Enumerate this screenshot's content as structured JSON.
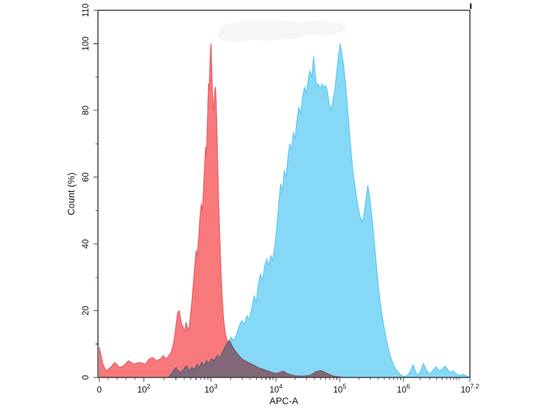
{
  "chart_data": {
    "type": "area",
    "variant": "flow-cytometry-overlay-histogram",
    "title": "",
    "xlabel": "APC-A",
    "ylabel": "Count (%)",
    "x_scale": "logicle",
    "ylim": [
      0,
      110
    ],
    "x_range_label": "0 to 10^7.2",
    "legend": "none",
    "grid": false,
    "axis_color": "#444444",
    "text_color": "#111111",
    "y_major_ticks": [
      0,
      20,
      40,
      60,
      80,
      100,
      110
    ],
    "y_minor_ticks": [
      10,
      30,
      50,
      70,
      90
    ],
    "x_ticks": [
      {
        "value": 0,
        "label": "0"
      },
      {
        "value": 100,
        "base": "10",
        "exp": "2"
      },
      {
        "value": 1000,
        "base": "10",
        "exp": "3"
      },
      {
        "value": 10000,
        "base": "10",
        "exp": "4"
      },
      {
        "value": 100000,
        "base": "10",
        "exp": "5"
      },
      {
        "value": 1000000,
        "base": "10",
        "exp": "6"
      },
      {
        "value": 15848932,
        "base": "10",
        "exp": "7.2"
      }
    ],
    "x_minor_ticks": [
      20,
      40,
      60,
      80,
      200,
      300,
      400,
      500,
      600,
      700,
      800,
      900,
      2000,
      3000,
      4000,
      5000,
      6000,
      7000,
      8000,
      9000,
      20000,
      30000,
      40000,
      50000,
      60000,
      70000,
      80000,
      90000,
      200000,
      300000,
      400000,
      500000,
      600000,
      700000,
      800000,
      900000,
      2000000,
      3000000,
      4000000,
      5000000,
      6000000,
      7000000,
      8000000,
      9000000,
      10000000
    ],
    "series": [
      {
        "name": "blue-stained-sample",
        "fill": "#85d9f7",
        "stroke": "#5cc6ee",
        "blend": "normal",
        "points": [
          [
            230,
            0
          ],
          [
            265,
            1.5
          ],
          [
            300,
            3
          ],
          [
            340,
            1.5
          ],
          [
            385,
            2.2
          ],
          [
            430,
            3.5
          ],
          [
            470,
            2
          ],
          [
            520,
            3
          ],
          [
            570,
            2.4
          ],
          [
            620,
            4
          ],
          [
            670,
            3
          ],
          [
            730,
            4.6
          ],
          [
            790,
            3.6
          ],
          [
            860,
            5
          ],
          [
            940,
            4.2
          ],
          [
            1020,
            5.6
          ],
          [
            1120,
            5
          ],
          [
            1240,
            6.6
          ],
          [
            1380,
            6
          ],
          [
            1540,
            8
          ],
          [
            1700,
            9.6
          ],
          [
            1880,
            11
          ],
          [
            2060,
            12
          ],
          [
            2260,
            11
          ],
          [
            2480,
            13
          ],
          [
            2720,
            15.5
          ],
          [
            2980,
            17
          ],
          [
            3260,
            16
          ],
          [
            3560,
            18.5
          ],
          [
            3900,
            17.5
          ],
          [
            4260,
            21
          ],
          [
            4600,
            24.5
          ],
          [
            4950,
            22.5
          ],
          [
            5350,
            28
          ],
          [
            5750,
            31
          ],
          [
            6200,
            29
          ],
          [
            6700,
            33.5
          ],
          [
            7200,
            35.5
          ],
          [
            7700,
            33.5
          ],
          [
            8300,
            36.5
          ],
          [
            8900,
            35
          ],
          [
            9500,
            39
          ],
          [
            10200,
            44
          ],
          [
            11000,
            52
          ],
          [
            11800,
            58
          ],
          [
            12600,
            56
          ],
          [
            13500,
            62
          ],
          [
            14400,
            60
          ],
          [
            15400,
            66
          ],
          [
            16400,
            70
          ],
          [
            17500,
            68
          ],
          [
            18700,
            73.5
          ],
          [
            19900,
            71.5
          ],
          [
            21300,
            77
          ],
          [
            22800,
            81
          ],
          [
            24400,
            79
          ],
          [
            26100,
            84
          ],
          [
            27900,
            87
          ],
          [
            29800,
            85
          ],
          [
            31800,
            89
          ],
          [
            34000,
            92
          ],
          [
            36300,
            90
          ],
          [
            38800,
            96
          ],
          [
            41000,
            91
          ],
          [
            43500,
            87
          ],
          [
            46000,
            88
          ],
          [
            49000,
            86.5
          ],
          [
            52500,
            88
          ],
          [
            56000,
            87
          ],
          [
            60000,
            87.5
          ],
          [
            64000,
            85.5
          ],
          [
            68500,
            82
          ],
          [
            73000,
            80
          ],
          [
            78000,
            83
          ],
          [
            83500,
            86
          ],
          [
            89000,
            91
          ],
          [
            95000,
            96
          ],
          [
            101500,
            100
          ],
          [
            108000,
            97
          ],
          [
            115000,
            93.5
          ],
          [
            123000,
            88
          ],
          [
            131000,
            82
          ],
          [
            140000,
            75
          ],
          [
            150000,
            68
          ],
          [
            160000,
            62
          ],
          [
            171000,
            58
          ],
          [
            183000,
            54
          ],
          [
            196000,
            50.5
          ],
          [
            210000,
            48
          ],
          [
            225000,
            46.5
          ],
          [
            240000,
            49
          ],
          [
            257000,
            53
          ],
          [
            275000,
            57.5
          ],
          [
            290000,
            55
          ],
          [
            308000,
            51
          ],
          [
            328000,
            46
          ],
          [
            350000,
            40
          ],
          [
            374000,
            34
          ],
          [
            400000,
            28
          ],
          [
            428000,
            23
          ],
          [
            458000,
            19
          ],
          [
            490000,
            15.5
          ],
          [
            525000,
            12.5
          ],
          [
            560000,
            10
          ],
          [
            600000,
            7.5
          ],
          [
            645000,
            5.5
          ],
          [
            690000,
            4
          ],
          [
            740000,
            2.8
          ],
          [
            800000,
            1.8
          ],
          [
            860000,
            1.1
          ],
          [
            930000,
            0.6
          ],
          [
            1000000,
            0.4
          ],
          [
            1120000,
            0.3
          ],
          [
            1300000,
            1.5
          ],
          [
            1500000,
            3.8
          ],
          [
            1700000,
            1.2
          ],
          [
            1900000,
            0.8
          ],
          [
            2100000,
            2.5
          ],
          [
            2300000,
            4.2
          ],
          [
            2600000,
            2.2
          ],
          [
            2900000,
            1
          ],
          [
            3300000,
            1.8
          ],
          [
            3900000,
            3.2
          ],
          [
            4400000,
            2
          ],
          [
            5000000,
            2.4
          ],
          [
            5600000,
            3.4
          ],
          [
            6300000,
            2.4
          ],
          [
            7000000,
            1.4
          ],
          [
            7800000,
            2
          ],
          [
            8800000,
            1.2
          ],
          [
            10000000,
            0.6
          ],
          [
            12000000,
            0.9
          ],
          [
            14000000,
            0.4
          ],
          [
            15500000,
            0
          ]
        ]
      },
      {
        "name": "red-negative-control",
        "fill": "#f8797c",
        "stroke": "#e45d63",
        "blend": "multiply",
        "points": [
          [
            0,
            9
          ],
          [
            8,
            4
          ],
          [
            15,
            2
          ],
          [
            25,
            3
          ],
          [
            35,
            4.5
          ],
          [
            45,
            3
          ],
          [
            55,
            3.5
          ],
          [
            65,
            5
          ],
          [
            78,
            4
          ],
          [
            90,
            4.5
          ],
          [
            105,
            4
          ],
          [
            120,
            5.5
          ],
          [
            135,
            6
          ],
          [
            155,
            5
          ],
          [
            175,
            5.5
          ],
          [
            195,
            6.5
          ],
          [
            215,
            5.5
          ],
          [
            235,
            6.5
          ],
          [
            255,
            7.5
          ],
          [
            275,
            10
          ],
          [
            290,
            13
          ],
          [
            305,
            16.5
          ],
          [
            320,
            19.5
          ],
          [
            335,
            20
          ],
          [
            350,
            18
          ],
          [
            365,
            16
          ],
          [
            385,
            15
          ],
          [
            405,
            13.5
          ],
          [
            425,
            16.5
          ],
          [
            445,
            15
          ],
          [
            465,
            14
          ],
          [
            485,
            17
          ],
          [
            510,
            21
          ],
          [
            540,
            27
          ],
          [
            570,
            33
          ],
          [
            600,
            38
          ],
          [
            625,
            36.5
          ],
          [
            655,
            42
          ],
          [
            685,
            48
          ],
          [
            715,
            52
          ],
          [
            745,
            50
          ],
          [
            775,
            57
          ],
          [
            805,
            64
          ],
          [
            830,
            69
          ],
          [
            850,
            66
          ],
          [
            875,
            73
          ],
          [
            900,
            82
          ],
          [
            920,
            88
          ],
          [
            940,
            86
          ],
          [
            960,
            93
          ],
          [
            985,
            98
          ],
          [
            1000,
            100
          ],
          [
            1020,
            95
          ],
          [
            1045,
            88
          ],
          [
            1065,
            83
          ],
          [
            1085,
            80
          ],
          [
            1110,
            82
          ],
          [
            1140,
            86
          ],
          [
            1170,
            87
          ],
          [
            1200,
            83
          ],
          [
            1235,
            74
          ],
          [
            1270,
            64
          ],
          [
            1310,
            53
          ],
          [
            1350,
            45
          ],
          [
            1395,
            37
          ],
          [
            1440,
            30
          ],
          [
            1490,
            24
          ],
          [
            1545,
            19
          ],
          [
            1605,
            15.5
          ],
          [
            1670,
            13
          ],
          [
            1745,
            11.5
          ],
          [
            1825,
            10.5
          ],
          [
            1910,
            11
          ],
          [
            2000,
            10.5
          ],
          [
            2100,
            9.5
          ],
          [
            2250,
            8.5
          ],
          [
            2450,
            7.5
          ],
          [
            2700,
            6.5
          ],
          [
            3000,
            5.5
          ],
          [
            3350,
            5
          ],
          [
            3750,
            4.5
          ],
          [
            4200,
            4
          ],
          [
            4700,
            3.5
          ],
          [
            5300,
            3
          ],
          [
            6000,
            2.6
          ],
          [
            6800,
            2.2
          ],
          [
            7700,
            1.9
          ],
          [
            8700,
            1.5
          ],
          [
            10000,
            1.2
          ],
          [
            11500,
            1.5
          ],
          [
            13000,
            1.9
          ],
          [
            14800,
            1.2
          ],
          [
            17000,
            0.8
          ],
          [
            20000,
            0.5
          ],
          [
            26000,
            0.4
          ],
          [
            34000,
            0.6
          ],
          [
            42000,
            1.7
          ],
          [
            50000,
            2.1
          ],
          [
            58000,
            1.6
          ],
          [
            68000,
            0.9
          ],
          [
            80000,
            0.4
          ],
          [
            95000,
            0.2
          ],
          [
            115000,
            0
          ]
        ]
      }
    ],
    "artifacts": {
      "smudge_color": "#f2f2f2",
      "corner_mark_color": "#2b2b2b"
    }
  }
}
